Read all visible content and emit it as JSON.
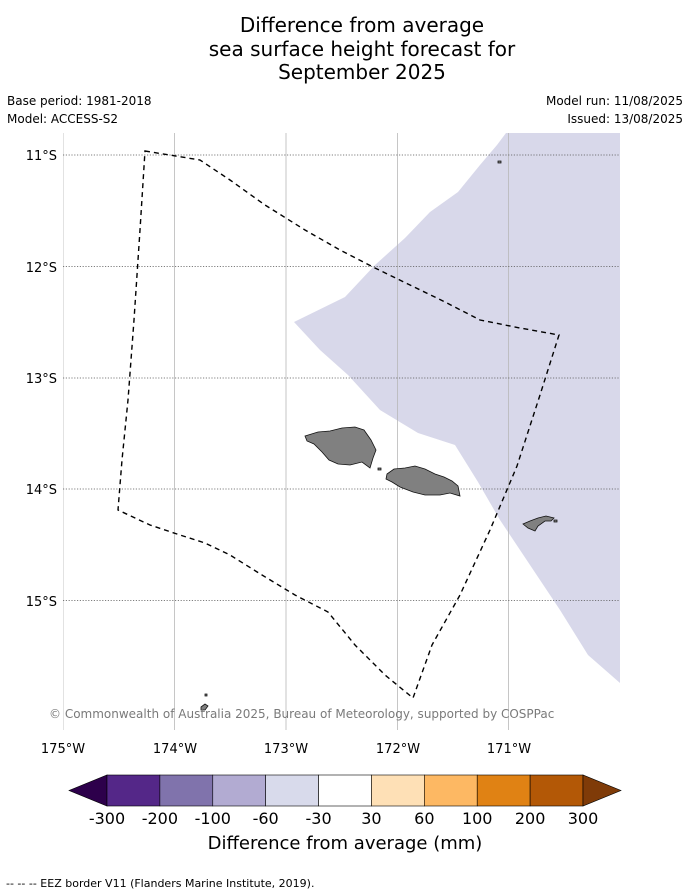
{
  "header": {
    "title_lines": [
      "Difference from average",
      "sea surface height forecast for",
      "September 2025"
    ],
    "base_period": "Base period: 1981-2018",
    "model": "Model: ACCESS-S2",
    "model_run": "Model run: 11/08/2025",
    "issued": "Issued: 13/08/2025"
  },
  "map": {
    "lon_labels": [
      "175°W",
      "174°W",
      "173°W",
      "172°W",
      "171°W"
    ],
    "lat_labels": [
      "11°S",
      "12°S",
      "13°S",
      "14°S",
      "15°S"
    ],
    "credit": "© Commonwealth of Australia 2025, Bureau of Meteorology, supported by COSPPac",
    "ocean_color": "#ffffff",
    "anomaly_fill_color": "#d8d8ea",
    "land_color": "#808080"
  },
  "colorbar": {
    "ticks": [
      "-300",
      "-200",
      "-100",
      "-60",
      "-30",
      "30",
      "60",
      "100",
      "200",
      "300"
    ],
    "colors": [
      "#2d004b",
      "#542788",
      "#8073ac",
      "#b2abd2",
      "#d8daeb",
      "#ffffff",
      "#fee0b6",
      "#fdb863",
      "#e08214",
      "#b35806",
      "#7f3b08"
    ],
    "label": "Difference from average (mm)"
  },
  "footer": {
    "legend_text": "--  --  -- EEZ border V11 (Flanders Marine Institute, 2019)."
  }
}
